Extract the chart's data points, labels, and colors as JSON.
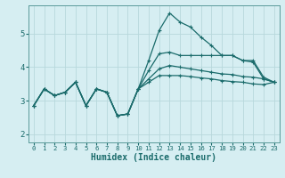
{
  "xlabel": "Humidex (Indice chaleur)",
  "bg_color": "#d6eef2",
  "grid_color": "#b8d8dc",
  "line_color": "#1a6b6b",
  "spine_color": "#5a9a9a",
  "xlim": [
    -0.5,
    23.5
  ],
  "ylim": [
    1.75,
    5.85
  ],
  "yticks": [
    2,
    3,
    4,
    5
  ],
  "xticks": [
    0,
    1,
    2,
    3,
    4,
    5,
    6,
    7,
    8,
    9,
    10,
    11,
    12,
    13,
    14,
    15,
    16,
    17,
    18,
    19,
    20,
    21,
    22,
    23
  ],
  "line1_y": [
    2.85,
    3.35,
    3.15,
    3.25,
    3.55,
    2.85,
    3.35,
    3.25,
    2.55,
    2.6,
    3.35,
    4.2,
    5.1,
    5.62,
    5.35,
    5.2,
    4.9,
    4.65,
    4.35,
    4.35,
    4.2,
    4.2,
    3.7,
    3.55
  ],
  "line2_y": [
    2.85,
    3.35,
    3.15,
    3.25,
    3.55,
    2.85,
    3.35,
    3.25,
    2.55,
    2.6,
    3.35,
    3.9,
    4.4,
    4.45,
    4.35,
    4.35,
    4.35,
    4.35,
    4.35,
    4.35,
    4.2,
    4.15,
    3.65,
    3.55
  ],
  "line3_y": [
    2.85,
    3.35,
    3.15,
    3.25,
    3.55,
    2.85,
    3.35,
    3.25,
    2.55,
    2.6,
    3.35,
    3.65,
    3.95,
    4.05,
    4.0,
    3.95,
    3.9,
    3.85,
    3.8,
    3.78,
    3.72,
    3.7,
    3.65,
    3.55
  ],
  "line4_y": [
    2.85,
    3.35,
    3.15,
    3.25,
    3.55,
    2.85,
    3.35,
    3.25,
    2.55,
    2.6,
    3.35,
    3.55,
    3.75,
    3.75,
    3.75,
    3.72,
    3.68,
    3.65,
    3.6,
    3.57,
    3.55,
    3.5,
    3.48,
    3.55
  ],
  "markersize": 3,
  "linewidth": 0.9,
  "tick_fontsize": 6,
  "xlabel_fontsize": 7
}
